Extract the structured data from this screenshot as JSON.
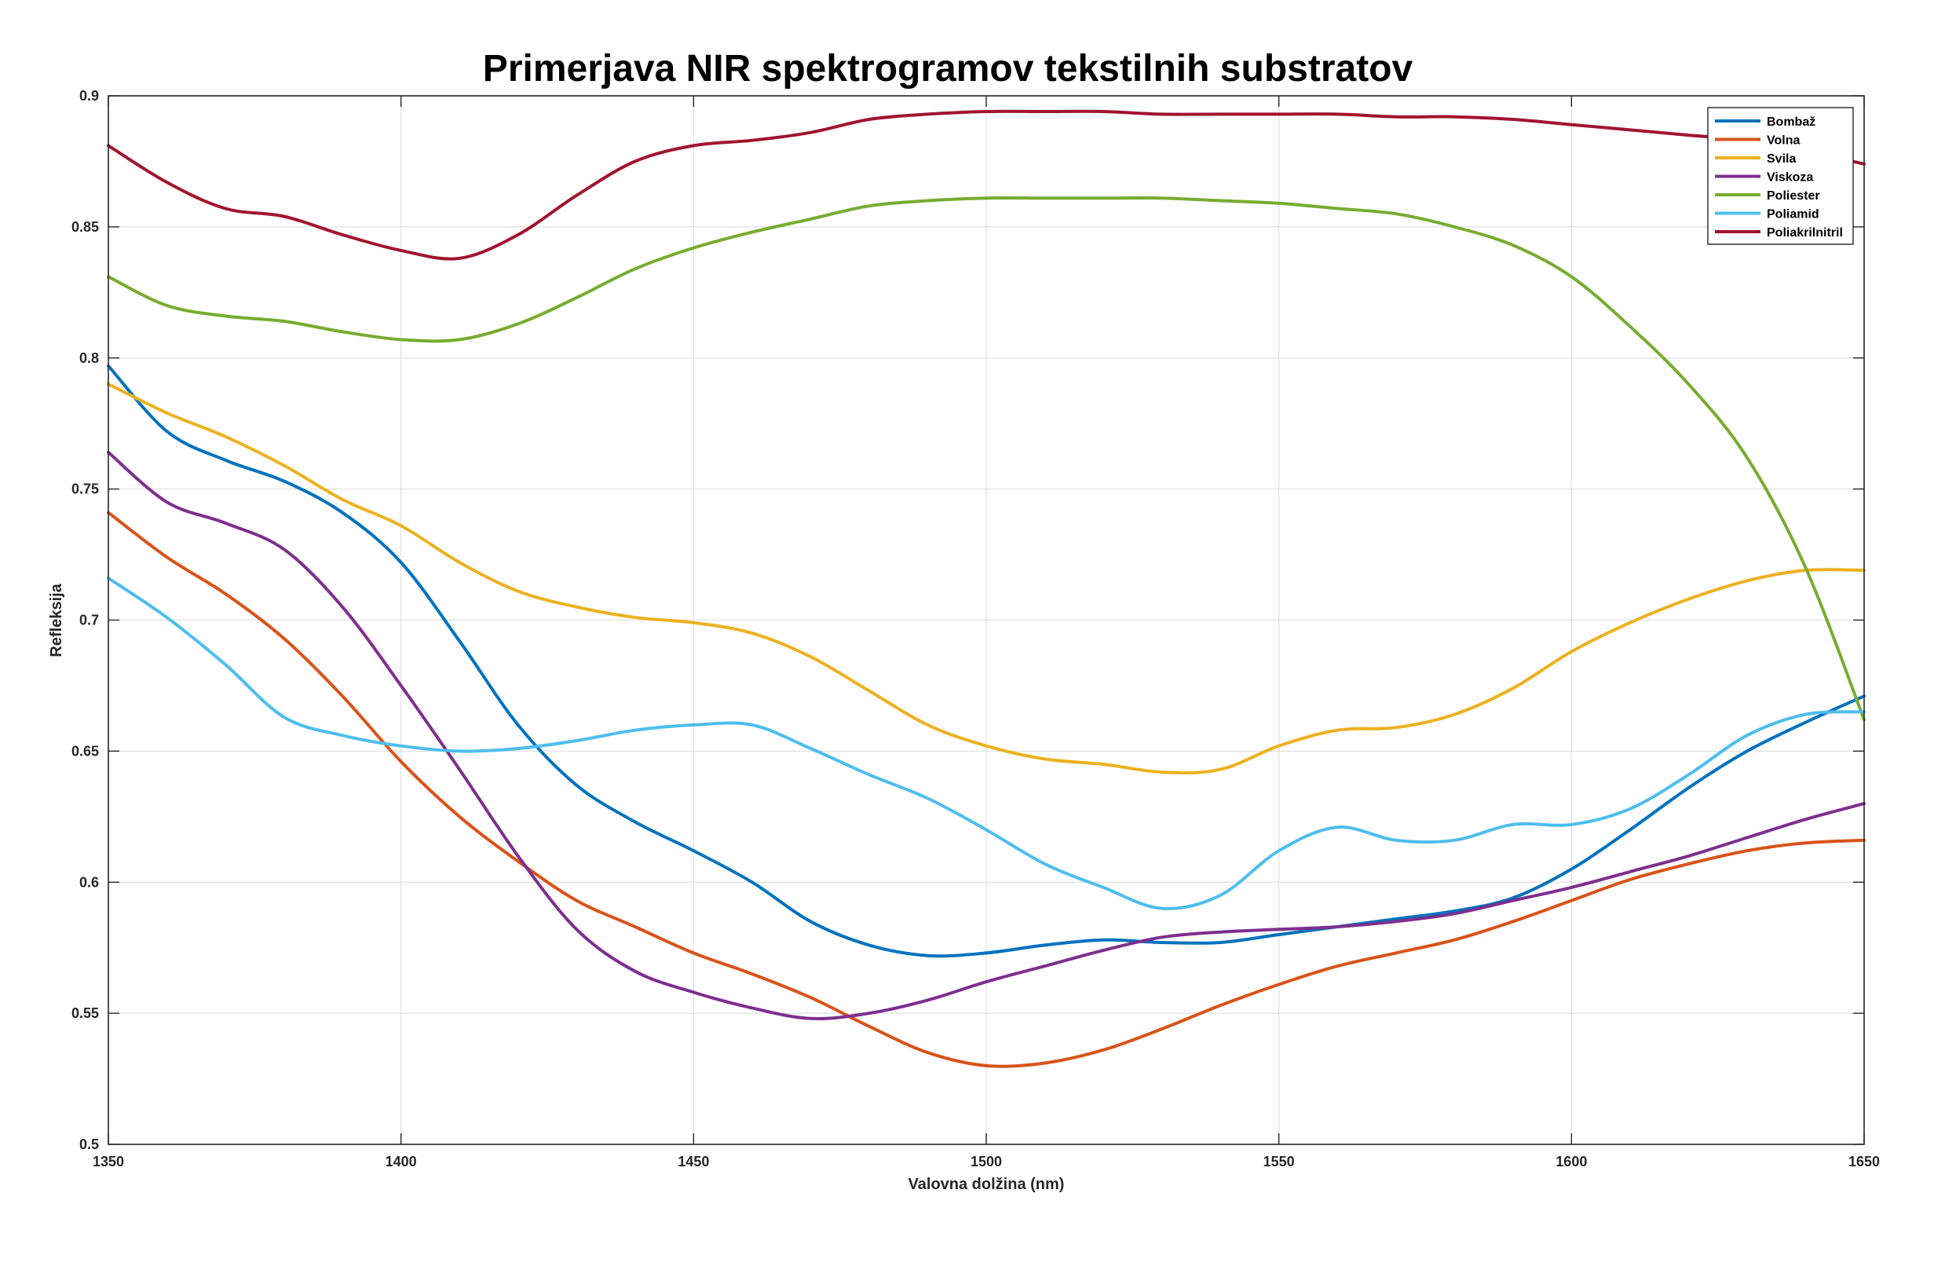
{
  "chart_data": {
    "type": "line",
    "title": "Primerjava NIR spektrogramov tekstilnih substratov",
    "xlabel": "Valovna dolžina (nm)",
    "ylabel": "Refleksija",
    "xlim": [
      1350,
      1650
    ],
    "ylim": [
      0.5,
      0.9
    ],
    "xticks": [
      1350,
      1400,
      1450,
      1500,
      1550,
      1600,
      1650
    ],
    "xtick_labels": [
      "1350",
      "1400",
      "1450",
      "1500",
      "1550",
      "1600",
      "1650"
    ],
    "yticks": [
      0.5,
      0.55,
      0.6,
      0.65,
      0.7,
      0.75,
      0.8,
      0.85,
      0.9
    ],
    "ytick_labels": [
      "0.5",
      "0.55",
      "0.6",
      "0.65",
      "0.7",
      "0.75",
      "0.8",
      "0.85",
      "0.9"
    ],
    "grid": true,
    "legend_position": "top-right",
    "x": [
      1350,
      1360,
      1370,
      1380,
      1390,
      1400,
      1410,
      1420,
      1430,
      1440,
      1450,
      1460,
      1470,
      1480,
      1490,
      1500,
      1510,
      1520,
      1530,
      1540,
      1550,
      1560,
      1570,
      1580,
      1590,
      1600,
      1610,
      1620,
      1630,
      1640,
      1650
    ],
    "series": [
      {
        "name": "Bombaž",
        "color": "#0072bd",
        "values": [
          0.797,
          0.772,
          0.761,
          0.753,
          0.741,
          0.722,
          0.692,
          0.66,
          0.637,
          0.623,
          0.612,
          0.6,
          0.585,
          0.576,
          0.572,
          0.573,
          0.576,
          0.578,
          0.577,
          0.577,
          0.58,
          0.583,
          0.586,
          0.589,
          0.594,
          0.605,
          0.62,
          0.636,
          0.65,
          0.661,
          0.671
        ]
      },
      {
        "name": "Volna",
        "color": "#d95319",
        "values": [
          0.741,
          0.724,
          0.71,
          0.693,
          0.671,
          0.646,
          0.625,
          0.608,
          0.593,
          0.583,
          0.573,
          0.565,
          0.556,
          0.545,
          0.535,
          0.53,
          0.531,
          0.536,
          0.544,
          0.553,
          0.561,
          0.568,
          0.573,
          0.578,
          0.585,
          0.593,
          0.601,
          0.607,
          0.612,
          0.615,
          0.616
        ]
      },
      {
        "name": "Svila",
        "color": "#edb120",
        "values": [
          0.79,
          0.779,
          0.77,
          0.759,
          0.746,
          0.736,
          0.722,
          0.711,
          0.705,
          0.701,
          0.699,
          0.695,
          0.686,
          0.673,
          0.66,
          0.652,
          0.647,
          0.645,
          0.642,
          0.643,
          0.652,
          0.658,
          0.659,
          0.664,
          0.674,
          0.688,
          0.699,
          0.708,
          0.715,
          0.719,
          0.719
        ]
      },
      {
        "name": "Viskoza",
        "color": "#7e2f8e",
        "values": [
          0.764,
          0.745,
          0.737,
          0.727,
          0.705,
          0.675,
          0.643,
          0.61,
          0.582,
          0.566,
          0.558,
          0.552,
          0.548,
          0.55,
          0.555,
          0.562,
          0.568,
          0.574,
          0.579,
          0.581,
          0.582,
          0.583,
          0.585,
          0.588,
          0.593,
          0.598,
          0.604,
          0.61,
          0.617,
          0.624,
          0.63
        ]
      },
      {
        "name": "Poliester",
        "color": "#77ac30",
        "values": [
          0.831,
          0.82,
          0.816,
          0.814,
          0.81,
          0.807,
          0.807,
          0.813,
          0.823,
          0.834,
          0.842,
          0.848,
          0.853,
          0.858,
          0.86,
          0.861,
          0.861,
          0.861,
          0.861,
          0.86,
          0.859,
          0.857,
          0.855,
          0.85,
          0.843,
          0.831,
          0.812,
          0.79,
          0.762,
          0.72,
          0.662
        ]
      },
      {
        "name": "Poliamid",
        "color": "#4dbeee",
        "values": [
          0.716,
          0.701,
          0.683,
          0.663,
          0.656,
          0.652,
          0.65,
          0.651,
          0.654,
          0.658,
          0.66,
          0.66,
          0.651,
          0.641,
          0.632,
          0.62,
          0.607,
          0.598,
          0.59,
          0.595,
          0.612,
          0.621,
          0.616,
          0.616,
          0.622,
          0.622,
          0.628,
          0.641,
          0.656,
          0.664,
          0.665
        ]
      },
      {
        "name": "Poliakrilnitril",
        "color": "#a2142f",
        "values": [
          0.881,
          0.867,
          0.857,
          0.854,
          0.847,
          0.841,
          0.838,
          0.847,
          0.862,
          0.875,
          0.881,
          0.883,
          0.886,
          0.891,
          0.893,
          0.894,
          0.894,
          0.894,
          0.893,
          0.893,
          0.893,
          0.893,
          0.892,
          0.892,
          0.891,
          0.889,
          0.887,
          0.885,
          0.883,
          0.879,
          0.874
        ]
      }
    ]
  }
}
